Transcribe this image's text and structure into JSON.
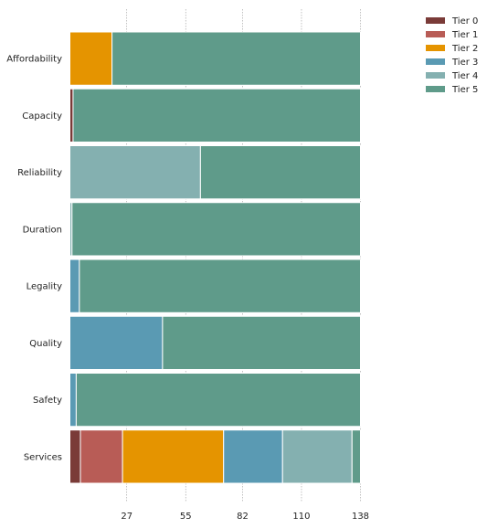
{
  "chart_data": {
    "type": "bar",
    "orientation": "horizontal",
    "stacked": true,
    "categories": [
      "Affordability",
      "Capacity",
      "Reliability",
      "Duration",
      "Legality",
      "Quality",
      "Safety",
      "Services"
    ],
    "series": [
      {
        "name": "Tier 0",
        "color": "#7a3b38",
        "values": [
          0,
          1.5,
          0,
          0,
          0,
          0,
          0,
          5
        ]
      },
      {
        "name": "Tier 1",
        "color": "#b85c56",
        "values": [
          0,
          0,
          0,
          0,
          0,
          0,
          0,
          20
        ]
      },
      {
        "name": "Tier 2",
        "color": "#e59400",
        "values": [
          20,
          0,
          0,
          0,
          0,
          0,
          0,
          48
        ]
      },
      {
        "name": "Tier 3",
        "color": "#5a9ab3",
        "values": [
          0,
          0,
          0,
          0,
          4.5,
          44,
          3,
          28
        ]
      },
      {
        "name": "Tier 4",
        "color": "#84b0b0",
        "values": [
          0,
          0,
          62,
          1,
          0,
          0,
          0,
          33
        ]
      },
      {
        "name": "Tier 5",
        "color": "#5f9b8a",
        "values": [
          118,
          136.5,
          76,
          137,
          133.5,
          94,
          135,
          4
        ]
      }
    ],
    "xticks": [
      27,
      55,
      82,
      110,
      138
    ],
    "xlim": [
      0,
      138
    ],
    "xlabel": "",
    "ylabel": "",
    "title": "",
    "grid": "x",
    "legend": "top-right"
  }
}
